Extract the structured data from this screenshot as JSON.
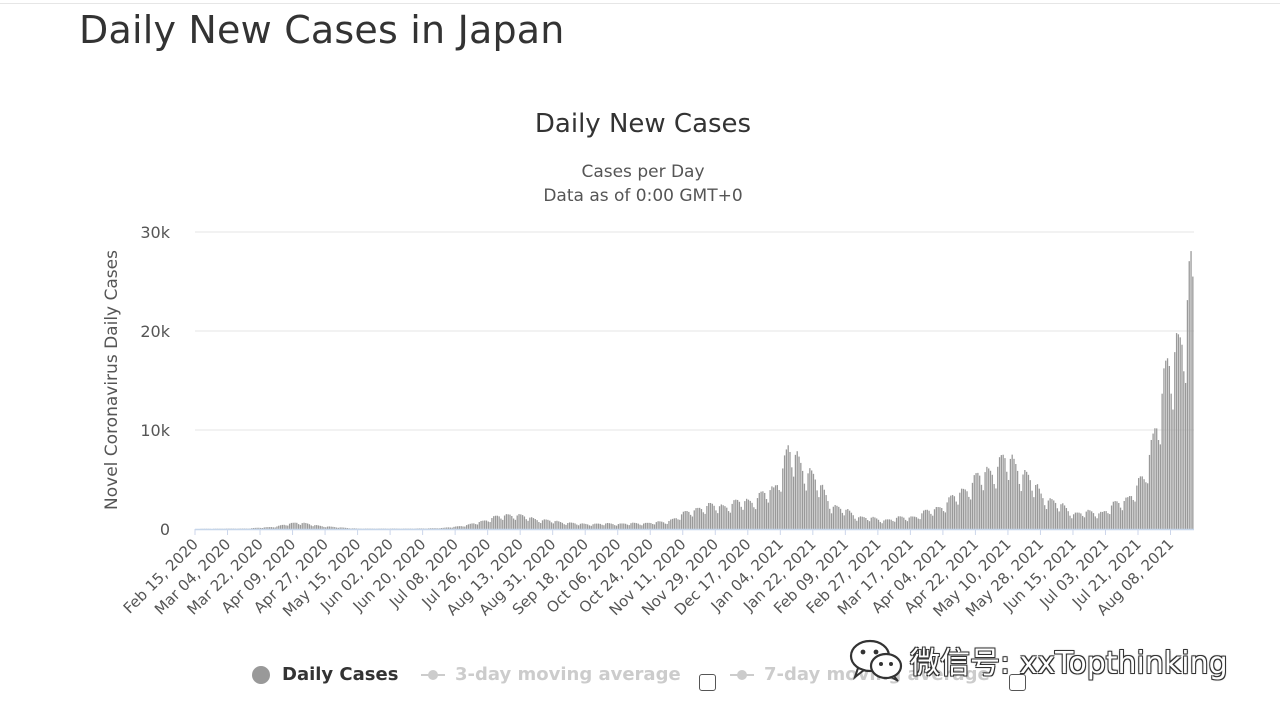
{
  "page": {
    "title": "Daily New Cases in Japan"
  },
  "legend": [
    {
      "label": "Daily Cases"
    },
    {
      "label": "3-day moving average"
    },
    {
      "label": "7-day moving average"
    }
  ],
  "watermark": {
    "text": "微信号: xxTopthinking",
    "icon": "wechat-icon"
  },
  "colors": {
    "bar": "#999999",
    "baseline": "#c6d6ea",
    "grid": "#e6e6e6",
    "inactive": "#cccccc"
  },
  "chart_data": {
    "type": "bar",
    "title": "Daily New Cases",
    "subtitle": [
      "Cases per Day",
      "Data as of 0:00 GMT+0"
    ],
    "xlabel": "",
    "ylabel": "Novel Coronavirus Daily Cases",
    "ylim": [
      0,
      30000
    ],
    "yticks": [
      0,
      10000,
      20000,
      30000
    ],
    "ytick_labels": [
      "0",
      "10k",
      "20k",
      "30k"
    ],
    "grid": true,
    "legend_position": "bottom",
    "x_range": [
      "2020-02-15",
      "2021-08-20"
    ],
    "x_tick_labels": [
      "Feb 15, 2020",
      "Mar 04, 2020",
      "Mar 22, 2020",
      "Apr 09, 2020",
      "Apr 27, 2020",
      "May 15, 2020",
      "Jun 02, 2020",
      "Jun 20, 2020",
      "Jul 08, 2020",
      "Jul 26, 2020",
      "Aug 13, 2020",
      "Aug 31, 2020",
      "Sep 18, 2020",
      "Oct 06, 2020",
      "Oct 24, 2020",
      "Nov 11, 2020",
      "Nov 29, 2020",
      "Dec 17, 2020",
      "Jan 04, 2021",
      "Jan 22, 2021",
      "Feb 09, 2021",
      "Feb 27, 2021",
      "Mar 17, 2021",
      "Apr 04, 2021",
      "Apr 22, 2021",
      "May 10, 2021",
      "May 28, 2021",
      "Jun 15, 2021",
      "Jul 03, 2021",
      "Jul 21, 2021",
      "Aug 08, 2021"
    ],
    "series": [
      {
        "name": "Daily Cases",
        "points": [
          [
            "2020-02-15",
            10
          ],
          [
            "2020-03-15",
            50
          ],
          [
            "2020-03-31",
            250
          ],
          [
            "2020-04-11",
            700
          ],
          [
            "2020-04-20",
            400
          ],
          [
            "2020-05-01",
            200
          ],
          [
            "2020-05-15",
            40
          ],
          [
            "2020-06-15",
            40
          ],
          [
            "2020-07-01",
            100
          ],
          [
            "2020-07-15",
            400
          ],
          [
            "2020-07-26",
            1000
          ],
          [
            "2020-08-07",
            1500
          ],
          [
            "2020-08-25",
            900
          ],
          [
            "2020-09-15",
            500
          ],
          [
            "2020-10-15",
            550
          ],
          [
            "2020-11-01",
            700
          ],
          [
            "2020-11-20",
            2200
          ],
          [
            "2020-12-05",
            2400
          ],
          [
            "2020-12-20",
            3000
          ],
          [
            "2020-12-31",
            4000
          ],
          [
            "2021-01-08",
            7800
          ],
          [
            "2021-01-20",
            5800
          ],
          [
            "2021-02-01",
            2500
          ],
          [
            "2021-02-15",
            1300
          ],
          [
            "2021-03-01",
            900
          ],
          [
            "2021-03-20",
            1300
          ],
          [
            "2021-04-05",
            2500
          ],
          [
            "2021-04-22",
            5000
          ],
          [
            "2021-05-08",
            7000
          ],
          [
            "2021-05-15",
            6500
          ],
          [
            "2021-05-28",
            3500
          ],
          [
            "2021-06-15",
            1600
          ],
          [
            "2021-07-01",
            1700
          ],
          [
            "2021-07-15",
            3200
          ],
          [
            "2021-07-24",
            5000
          ],
          [
            "2021-07-30",
            10500
          ],
          [
            "2021-08-06",
            15500
          ],
          [
            "2021-08-13",
            20000
          ],
          [
            "2021-08-20",
            25500
          ]
        ]
      }
    ]
  }
}
